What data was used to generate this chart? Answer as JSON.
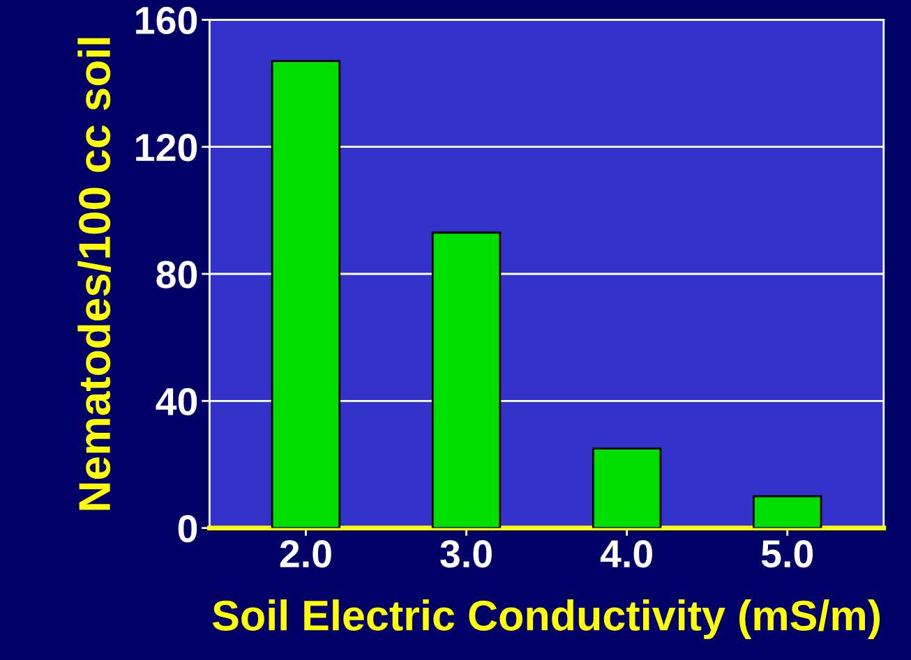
{
  "chart_data": {
    "type": "bar",
    "xlabel": "Soil Electric Conductivity (mS/m)",
    "ylabel": "Nematodes/100 cc soil",
    "categories": [
      "2.0",
      "3.0",
      "4.0",
      "5.0"
    ],
    "values": [
      147,
      93,
      25,
      10
    ],
    "color": "#00dd00",
    "ylim": [
      0,
      160
    ],
    "yticks": [
      0,
      40,
      80,
      120,
      160
    ],
    "grid": "y",
    "legend": false
  }
}
